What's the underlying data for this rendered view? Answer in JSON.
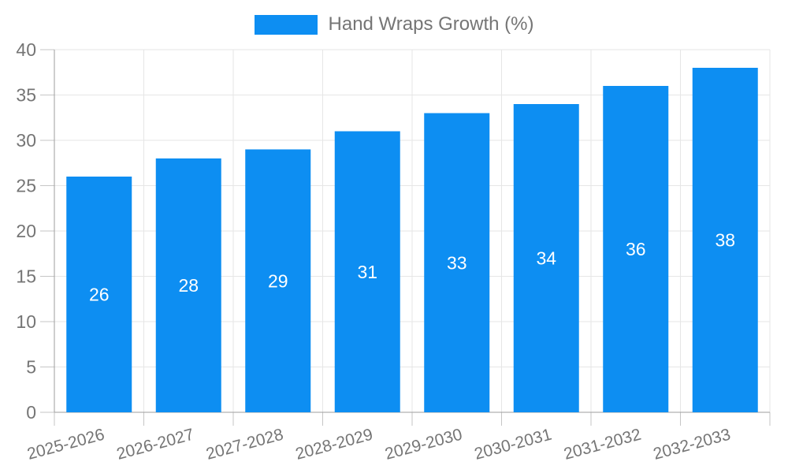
{
  "chart_data": {
    "type": "bar",
    "title": "",
    "legend": "Hand Wraps Growth (%)",
    "legend_position": "top",
    "categories": [
      "2025-2026",
      "2026-2027",
      "2027-2028",
      "2028-2029",
      "2029-2030",
      "2030-2031",
      "2031-2032",
      "2032-2033"
    ],
    "values": [
      26,
      28,
      29,
      31,
      33,
      34,
      36,
      38
    ],
    "xlabel": "",
    "ylabel": "",
    "ylim": [
      0,
      40
    ],
    "ytick_step": 5,
    "grid": true,
    "x_label_rotation_deg": -15,
    "colors": {
      "bar": "#0d8ef2",
      "bar_value_label": "#ffffff",
      "axis_text": "#757575",
      "axis_line": "#9e9e9e",
      "tick": "#c6c6c6",
      "gridline": "#e6e6e6",
      "background": "#ffffff"
    }
  }
}
